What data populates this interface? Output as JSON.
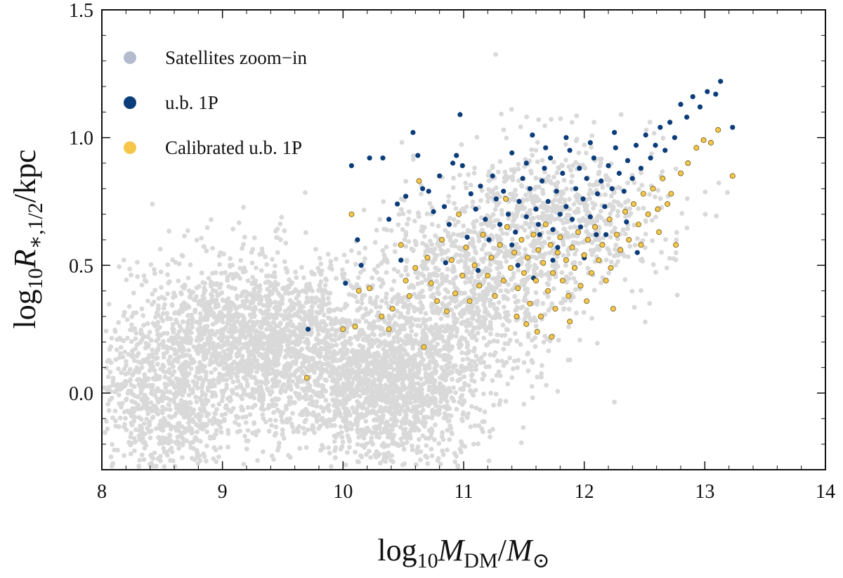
{
  "chart_data": {
    "type": "scatter",
    "xlabel": {
      "base": "log",
      "sub1": "10",
      "var": "M",
      "varsub": "DM",
      "slash": "/",
      "var2": "M",
      "var2sub": "⊙"
    },
    "ylabel": {
      "base": "log",
      "sub1": "10",
      "var": "R",
      "varsub": "∗,1/2",
      "tail": "/kpc"
    },
    "xlim": [
      8,
      14
    ],
    "ylim": [
      -0.3,
      1.5
    ],
    "x_ticks": [
      "8",
      "9",
      "10",
      "11",
      "12",
      "13",
      "14"
    ],
    "y_ticks": [
      "0.0",
      "0.5",
      "1.0",
      "1.5"
    ],
    "grid": false,
    "legend_position": "top-left",
    "series": [
      {
        "name": "Satellites zoom−in",
        "color": "#d9d9d9",
        "legend_color": "#b3bccf",
        "description_clusters": [
          {
            "cx": 9.3,
            "cy": 0.2,
            "sx": 0.55,
            "sy": 0.17,
            "n": 2100
          },
          {
            "cx": 10.4,
            "cy": 0.02,
            "sx": 0.35,
            "sy": 0.15,
            "n": 1400
          },
          {
            "cx": 11.0,
            "cy": 0.38,
            "sx": 0.4,
            "sy": 0.18,
            "n": 900
          },
          {
            "cx": 11.8,
            "cy": 0.68,
            "sx": 0.45,
            "sy": 0.16,
            "n": 700
          },
          {
            "cx": 8.5,
            "cy": -0.05,
            "sx": 0.3,
            "sy": 0.16,
            "n": 600
          }
        ]
      },
      {
        "name": "u.b. 1P",
        "color": "#0b3d7a",
        "points": [
          [
            9.71,
            0.25
          ],
          [
            10.02,
            0.43
          ],
          [
            10.07,
            0.89
          ],
          [
            10.12,
            0.6
          ],
          [
            10.15,
            0.5
          ],
          [
            10.22,
            0.92
          ],
          [
            10.33,
            0.92
          ],
          [
            10.38,
            0.68
          ],
          [
            10.45,
            0.74
          ],
          [
            10.48,
            0.52
          ],
          [
            10.52,
            0.77
          ],
          [
            10.58,
            1.02
          ],
          [
            10.62,
            0.93
          ],
          [
            10.66,
            0.8
          ],
          [
            10.71,
            0.79
          ],
          [
            10.75,
            0.71
          ],
          [
            10.8,
            0.85
          ],
          [
            10.84,
            0.73
          ],
          [
            10.88,
            0.66
          ],
          [
            10.91,
            0.9
          ],
          [
            10.94,
            0.93
          ],
          [
            10.97,
            1.09
          ],
          [
            10.99,
            0.89
          ],
          [
            11.03,
            0.61
          ],
          [
            11.06,
            0.78
          ],
          [
            11.1,
            0.72
          ],
          [
            11.14,
            0.81
          ],
          [
            11.18,
            0.68
          ],
          [
            11.21,
            0.6
          ],
          [
            11.24,
            0.85
          ],
          [
            11.27,
            0.76
          ],
          [
            11.3,
            0.66
          ],
          [
            11.33,
            0.79
          ],
          [
            11.37,
            0.7
          ],
          [
            11.4,
            0.94
          ],
          [
            11.43,
            0.63
          ],
          [
            11.46,
            0.75
          ],
          [
            11.49,
            0.84
          ],
          [
            11.52,
            0.69
          ],
          [
            11.55,
            0.8
          ],
          [
            11.57,
            1.01
          ],
          [
            11.6,
            0.72
          ],
          [
            11.62,
            0.66
          ],
          [
            11.65,
            0.83
          ],
          [
            11.67,
            0.88
          ],
          [
            11.7,
            0.75
          ],
          [
            11.72,
            0.92
          ],
          [
            11.74,
            0.64
          ],
          [
            11.77,
            0.79
          ],
          [
            11.8,
            0.7
          ],
          [
            11.82,
            0.86
          ],
          [
            11.85,
            0.73
          ],
          [
            11.88,
            0.95
          ],
          [
            11.9,
            0.68
          ],
          [
            11.93,
            0.8
          ],
          [
            11.96,
            0.88
          ],
          [
            11.99,
            0.76
          ],
          [
            12.02,
            0.84
          ],
          [
            12.05,
            0.69
          ],
          [
            12.08,
            0.92
          ],
          [
            12.11,
            0.78
          ],
          [
            12.14,
            0.83
          ],
          [
            12.17,
            0.73
          ],
          [
            12.2,
            0.89
          ],
          [
            12.23,
            0.8
          ],
          [
            12.26,
            0.96
          ],
          [
            12.29,
            0.86
          ],
          [
            12.33,
            0.79
          ],
          [
            12.36,
            0.91
          ],
          [
            12.4,
            0.84
          ],
          [
            12.43,
            0.97
          ],
          [
            12.47,
            0.88
          ],
          [
            12.51,
            1.01
          ],
          [
            12.55,
            0.92
          ],
          [
            12.59,
            0.97
          ],
          [
            12.63,
            1.04
          ],
          [
            12.67,
            0.95
          ],
          [
            12.71,
            1.06
          ],
          [
            12.75,
            1.0
          ],
          [
            12.8,
            1.13
          ],
          [
            12.85,
            1.08
          ],
          [
            12.9,
            1.16
          ],
          [
            12.96,
            1.12
          ],
          [
            13.02,
            1.18
          ],
          [
            13.09,
            1.17
          ],
          [
            13.13,
            1.22
          ],
          [
            13.23,
            1.04
          ],
          [
            11.58,
            0.45
          ],
          [
            11.63,
            0.62
          ],
          [
            11.78,
            0.57
          ],
          [
            12.0,
            0.53
          ],
          [
            12.18,
            0.62
          ],
          [
            12.35,
            0.67
          ],
          [
            11.45,
            0.5
          ],
          [
            11.12,
            0.48
          ],
          [
            10.85,
            0.51
          ],
          [
            11.68,
            0.96
          ],
          [
            11.85,
            1.0
          ],
          [
            12.05,
            0.98
          ],
          [
            12.25,
            1.02
          ],
          [
            11.52,
            0.9
          ],
          [
            11.4,
            0.58
          ],
          [
            12.1,
            0.62
          ],
          [
            12.44,
            0.55
          ],
          [
            11.97,
            0.65
          ],
          [
            11.74,
            0.52
          ]
        ]
      },
      {
        "name": "Calibrated u.b. 1P",
        "color": "#f5c64a",
        "edge_color": "#6b5a1f",
        "points": [
          [
            9.7,
            0.06
          ],
          [
            10.0,
            0.25
          ],
          [
            10.1,
            0.26
          ],
          [
            10.13,
            0.4
          ],
          [
            10.07,
            0.7
          ],
          [
            10.22,
            0.41
          ],
          [
            10.32,
            0.3
          ],
          [
            10.38,
            0.25
          ],
          [
            10.41,
            0.33
          ],
          [
            10.48,
            0.58
          ],
          [
            10.52,
            0.44
          ],
          [
            10.55,
            0.38
          ],
          [
            10.6,
            0.49
          ],
          [
            10.63,
            0.83
          ],
          [
            10.67,
            0.18
          ],
          [
            10.7,
            0.53
          ],
          [
            10.73,
            0.43
          ],
          [
            10.78,
            0.36
          ],
          [
            10.82,
            0.6
          ],
          [
            10.86,
            0.32
          ],
          [
            10.9,
            0.52
          ],
          [
            10.93,
            0.39
          ],
          [
            10.96,
            0.7
          ],
          [
            10.99,
            0.46
          ],
          [
            11.02,
            0.57
          ],
          [
            11.05,
            0.36
          ],
          [
            11.09,
            0.5
          ],
          [
            11.13,
            0.42
          ],
          [
            11.16,
            0.62
          ],
          [
            11.2,
            0.46
          ],
          [
            11.23,
            0.53
          ],
          [
            11.26,
            0.38
          ],
          [
            11.3,
            0.58
          ],
          [
            11.33,
            0.44
          ],
          [
            11.36,
            0.65
          ],
          [
            11.39,
            0.49
          ],
          [
            11.42,
            0.55
          ],
          [
            11.45,
            0.41
          ],
          [
            11.48,
            0.6
          ],
          [
            11.5,
            0.47
          ],
          [
            11.53,
            0.53
          ],
          [
            11.55,
            0.35
          ],
          [
            11.58,
            0.62
          ],
          [
            11.6,
            0.44
          ],
          [
            11.62,
            0.56
          ],
          [
            11.64,
            0.3
          ],
          [
            11.66,
            0.51
          ],
          [
            11.68,
            0.66
          ],
          [
            11.7,
            0.4
          ],
          [
            11.72,
            0.58
          ],
          [
            11.74,
            0.47
          ],
          [
            11.76,
            0.33
          ],
          [
            11.78,
            0.55
          ],
          [
            11.8,
            0.61
          ],
          [
            11.82,
            0.44
          ],
          [
            11.85,
            0.52
          ],
          [
            11.87,
            0.38
          ],
          [
            11.9,
            0.57
          ],
          [
            11.92,
            0.49
          ],
          [
            11.95,
            0.63
          ],
          [
            11.97,
            0.42
          ],
          [
            12.0,
            0.54
          ],
          [
            12.03,
            0.6
          ],
          [
            12.06,
            0.47
          ],
          [
            12.09,
            0.65
          ],
          [
            12.12,
            0.52
          ],
          [
            12.15,
            0.58
          ],
          [
            12.18,
            0.44
          ],
          [
            12.21,
            0.68
          ],
          [
            12.24,
            0.33
          ],
          [
            12.27,
            0.62
          ],
          [
            12.3,
            0.56
          ],
          [
            12.34,
            0.71
          ],
          [
            12.37,
            0.6
          ],
          [
            12.41,
            0.74
          ],
          [
            12.45,
            0.66
          ],
          [
            12.49,
            0.78
          ],
          [
            12.53,
            0.7
          ],
          [
            12.57,
            0.8
          ],
          [
            12.61,
            0.72
          ],
          [
            12.65,
            0.84
          ],
          [
            12.69,
            0.74
          ],
          [
            12.72,
            0.78
          ],
          [
            12.76,
            0.58
          ],
          [
            12.8,
            0.86
          ],
          [
            12.86,
            0.9
          ],
          [
            12.93,
            0.96
          ],
          [
            12.99,
            0.99
          ],
          [
            13.05,
            0.98
          ],
          [
            13.11,
            1.03
          ],
          [
            13.23,
            0.85
          ],
          [
            11.52,
            0.27
          ],
          [
            11.61,
            0.24
          ],
          [
            11.73,
            0.22
          ],
          [
            11.88,
            0.28
          ],
          [
            12.02,
            0.36
          ],
          [
            11.35,
            0.76
          ],
          [
            11.44,
            0.3
          ],
          [
            12.22,
            0.49
          ],
          [
            12.47,
            0.58
          ],
          [
            12.62,
            0.63
          ]
        ]
      }
    ]
  }
}
